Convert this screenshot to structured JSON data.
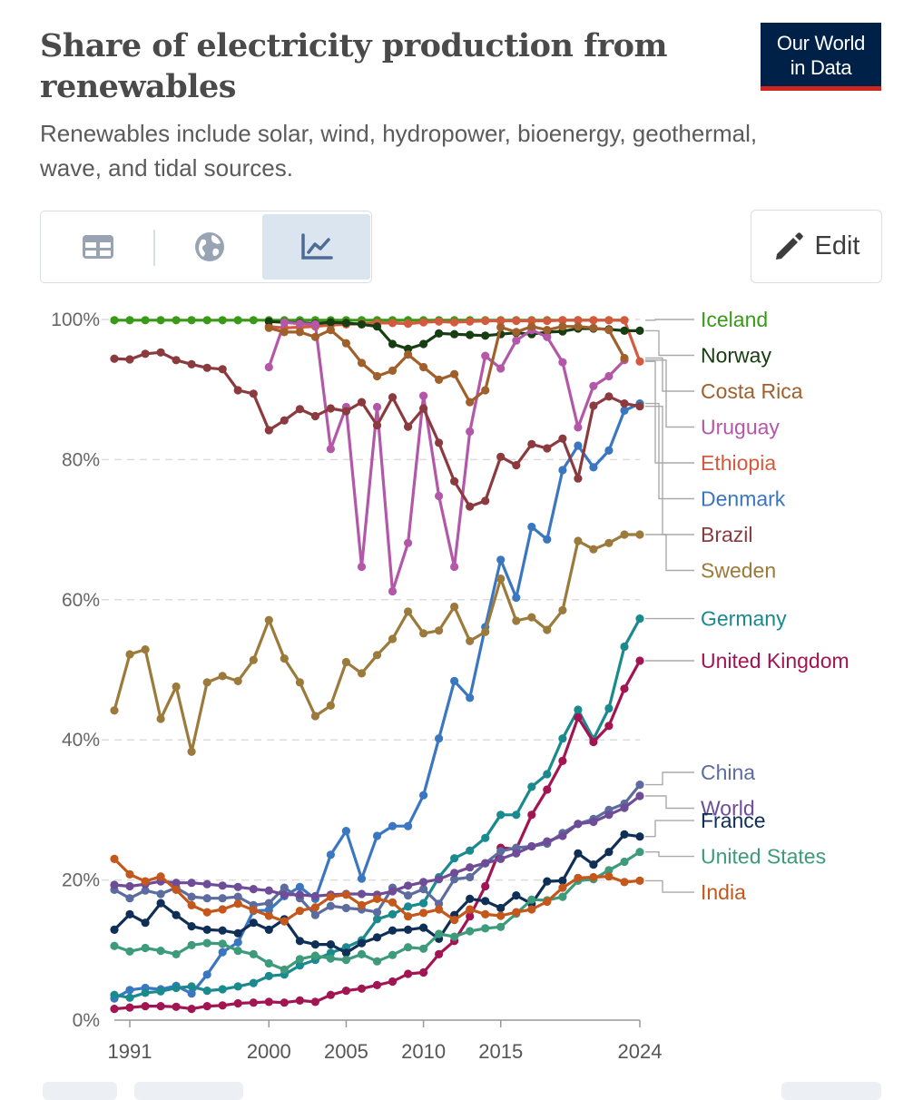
{
  "title": "Share of electricity production from renewables",
  "subtitle": "Renewables include solar, wind, hydropower, bioenergy, geothermal, wave, and tidal sources.",
  "logo": {
    "line1": "Our World",
    "line2": "in Data",
    "bg": "#002147",
    "accent": "#ce261e"
  },
  "tabs": [
    {
      "icon": "table-icon",
      "active": false
    },
    {
      "icon": "globe-icon",
      "active": false
    },
    {
      "icon": "line-chart-icon",
      "active": true
    }
  ],
  "edit_label": "Edit",
  "chart_data": {
    "type": "line",
    "title": "Share of electricity production from renewables",
    "ylim": [
      0,
      100
    ],
    "y_ticks": [
      0,
      20,
      40,
      60,
      80,
      100
    ],
    "y_tick_labels": [
      "0%",
      "20%",
      "40%",
      "60%",
      "80%",
      "100%"
    ],
    "x_ticks": [
      1991,
      2000,
      2005,
      2010,
      2015,
      2024
    ],
    "x_range": [
      1990,
      2024
    ],
    "grid": "horizontal-dashed",
    "series": [
      {
        "name": "Iceland",
        "color": "#3a9a18",
        "x_start": 1990,
        "values": [
          99.9,
          99.9,
          99.9,
          99.9,
          99.9,
          99.9,
          99.9,
          99.9,
          99.9,
          99.9,
          99.9,
          99.9,
          99.9,
          99.9,
          99.9,
          99.9,
          99.9,
          99.9,
          99.9,
          99.9,
          99.9,
          99.9,
          99.9,
          99.9,
          99.9,
          99.9,
          99.9,
          99.9,
          99.9,
          99.9,
          99.9,
          99.9,
          99.9,
          99.9
        ]
      },
      {
        "name": "Ethiopia",
        "color": "#d45a3f",
        "x_start": 2000,
        "values": [
          99.0,
          98.8,
          98.9,
          99.0,
          99.2,
          99.3,
          99.4,
          99.5,
          99.5,
          99.4,
          99.6,
          99.7,
          99.6,
          99.7,
          99.8,
          99.8,
          99.8,
          99.8,
          99.8,
          99.9,
          99.9,
          99.9,
          99.9,
          99.9,
          94.0
        ]
      },
      {
        "name": "Norway",
        "color": "#173d13",
        "x_start": 2000,
        "values": [
          99.7,
          99.6,
          99.5,
          99.4,
          99.6,
          99.5,
          99.3,
          99.0,
          96.5,
          95.8,
          96.5,
          98.0,
          97.9,
          97.8,
          97.7,
          97.9,
          98.1,
          97.9,
          98.2,
          98.3,
          98.7,
          98.7,
          98.6,
          98.4,
          98.4
        ]
      },
      {
        "name": "Uruguay",
        "color": "#b358a8",
        "x_start": 2000,
        "values": [
          93.2,
          99.6,
          99.4,
          99.3,
          81.5,
          87.5,
          64.7,
          87.5,
          61.2,
          68.1,
          89.1,
          74.8,
          64.7,
          84.0,
          94.8,
          93.0,
          97.0,
          98.5,
          97.5,
          93.9,
          84.6,
          90.5,
          91.9,
          94.2
        ]
      },
      {
        "name": "Costa Rica",
        "color": "#a0602c",
        "x_start": 2000,
        "values": [
          98.8,
          98.2,
          98.2,
          97.5,
          98.5,
          96.6,
          93.8,
          91.9,
          92.7,
          95.0,
          93.2,
          91.4,
          92.2,
          88.2,
          89.9,
          98.9,
          98.2,
          99.0,
          98.5,
          99.0,
          99.0,
          98.8,
          98.5,
          94.5
        ]
      },
      {
        "name": "Denmark",
        "color": "#3b77c0",
        "x_start": 1990,
        "values": [
          3.1,
          4.3,
          4.6,
          4.4,
          4.9,
          3.8,
          6.5,
          9.7,
          11.1,
          15.6,
          15.7,
          17.7,
          19.0,
          17.3,
          23.6,
          27.0,
          20.2,
          26.3,
          27.7,
          27.7,
          32.1,
          40.2,
          48.4,
          46.0,
          56.1,
          65.7,
          60.3,
          70.4,
          68.6,
          78.5,
          82.0,
          78.9,
          81.3,
          87.0,
          88.0
        ]
      },
      {
        "name": "Brazil",
        "color": "#8b3a3e",
        "x_start": 1990,
        "values": [
          94.4,
          94.3,
          95.1,
          95.3,
          94.2,
          93.6,
          93.1,
          92.9,
          89.9,
          89.4,
          84.2,
          85.6,
          87.2,
          86.2,
          87.3,
          86.9,
          88.2,
          84.9,
          88.9,
          84.7,
          87.3,
          82.4,
          76.9,
          73.3,
          74.1,
          80.4,
          79.2,
          82.2,
          81.6,
          83.0,
          77.3,
          87.7,
          89.0,
          88.0,
          87.6
        ]
      },
      {
        "name": "Sweden",
        "color": "#9b7a3c",
        "x_start": 1990,
        "values": [
          44.2,
          52.2,
          52.9,
          43.0,
          47.6,
          38.3,
          48.2,
          49.1,
          48.4,
          51.4,
          57.1,
          51.6,
          48.2,
          43.4,
          44.9,
          51.1,
          49.5,
          52.1,
          54.4,
          58.3,
          55.2,
          55.6,
          59.0,
          54.1,
          55.4,
          63.0,
          57.0,
          57.5,
          55.7,
          58.5,
          68.4,
          67.2,
          68.1,
          69.3,
          69.3
        ]
      },
      {
        "name": "Germany",
        "color": "#1a8a8f",
        "x_start": 1990,
        "values": [
          3.6,
          3.2,
          3.9,
          4.1,
          4.6,
          4.8,
          4.2,
          4.4,
          4.8,
          5.3,
          6.3,
          6.5,
          7.8,
          8.6,
          9.6,
          10.4,
          11.4,
          14.4,
          15.1,
          16.2,
          16.7,
          20.4,
          23.1,
          24.2,
          26.0,
          29.3,
          29.3,
          33.3,
          35.1,
          40.2,
          44.3,
          40.1,
          44.5,
          53.3,
          57.3
        ]
      },
      {
        "name": "United Kingdom",
        "color": "#a21552",
        "x_start": 1990,
        "values": [
          1.6,
          1.8,
          2.0,
          2.0,
          1.9,
          1.6,
          2.0,
          2.1,
          2.4,
          2.5,
          2.6,
          2.5,
          2.8,
          2.6,
          3.6,
          4.2,
          4.5,
          5.0,
          5.5,
          6.6,
          6.8,
          9.4,
          11.3,
          14.8,
          19.1,
          24.6,
          24.4,
          29.3,
          32.9,
          37.0,
          43.2,
          39.7,
          42.0,
          47.3,
          51.3
        ]
      },
      {
        "name": "China",
        "color": "#5d6c9e",
        "x_start": 1990,
        "values": [
          18.6,
          17.4,
          18.5,
          18.0,
          18.9,
          17.6,
          17.4,
          17.4,
          17.6,
          16.4,
          16.7,
          18.9,
          17.4,
          15.0,
          16.3,
          16.0,
          15.8,
          15.4,
          18.9,
          17.8,
          18.7,
          16.6,
          20.1,
          20.4,
          22.4,
          24.1,
          24.6,
          24.8,
          25.2,
          26.7,
          28.0,
          28.7,
          30.0,
          30.9,
          33.6
        ]
      },
      {
        "name": "World",
        "color": "#6e4c98",
        "x_start": 1990,
        "values": [
          19.3,
          19.1,
          19.4,
          19.8,
          19.6,
          19.6,
          19.4,
          19.2,
          19.0,
          18.7,
          18.5,
          17.9,
          17.9,
          17.7,
          17.9,
          18.0,
          18.0,
          17.9,
          18.4,
          19.2,
          19.7,
          20.1,
          21.0,
          21.8,
          22.4,
          23.0,
          23.8,
          24.8,
          25.5,
          26.3,
          28.0,
          28.3,
          29.3,
          30.3,
          32.0
        ]
      },
      {
        "name": "France",
        "color": "#0f2f57",
        "x_start": 1990,
        "values": [
          12.9,
          15.1,
          13.9,
          16.7,
          15.0,
          13.4,
          12.9,
          12.8,
          12.4,
          13.9,
          12.9,
          14.4,
          11.3,
          10.8,
          10.8,
          9.6,
          11.0,
          11.8,
          12.8,
          12.9,
          13.2,
          11.6,
          15.0,
          17.3,
          17.0,
          16.0,
          17.8,
          16.6,
          19.8,
          19.9,
          23.8,
          22.2,
          24.0,
          26.5,
          26.2
        ]
      },
      {
        "name": "United States",
        "color": "#3d9b7b",
        "x_start": 1990,
        "values": [
          10.6,
          9.8,
          10.3,
          9.9,
          9.4,
          10.7,
          11.0,
          10.9,
          9.9,
          9.4,
          8.1,
          7.2,
          8.7,
          9.2,
          8.8,
          8.6,
          9.4,
          8.4,
          9.3,
          10.4,
          10.2,
          12.3,
          11.9,
          12.7,
          13.1,
          13.3,
          15.2,
          17.2,
          17.1,
          17.6,
          19.9,
          20.1,
          21.4,
          22.6,
          24.0
        ]
      },
      {
        "name": "India",
        "color": "#c4571b",
        "x_start": 1990,
        "values": [
          23.0,
          20.8,
          19.8,
          20.5,
          18.6,
          16.4,
          15.4,
          15.8,
          16.6,
          15.7,
          14.9,
          14.1,
          15.6,
          16.1,
          17.6,
          17.9,
          16.4,
          17.3,
          16.8,
          14.8,
          15.3,
          15.8,
          14.3,
          15.8,
          15.1,
          14.9,
          15.4,
          15.8,
          16.9,
          18.9,
          20.3,
          20.4,
          20.5,
          19.7,
          19.9
        ]
      }
    ]
  }
}
